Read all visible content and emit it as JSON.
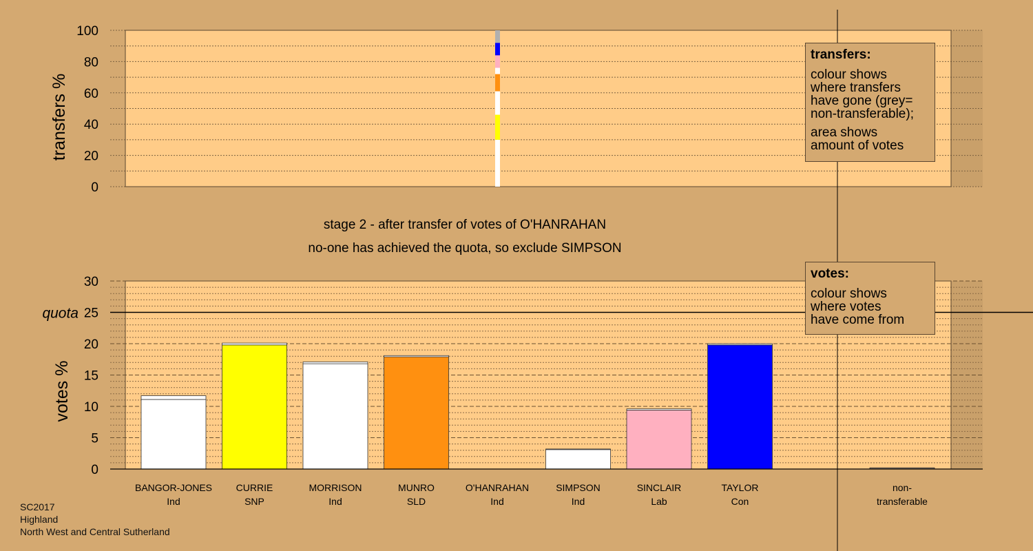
{
  "stage": {
    "title": "stage 2 - after transfer of votes of O'HANRAHAN",
    "subtitle": "no-one has achieved the quota, so exclude SIMPSON"
  },
  "legend_transfers": {
    "title": "transfers:",
    "lines": [
      "colour shows",
      "where transfers",
      "have gone (grey=",
      "non-transferable);"
    ],
    "lines2": [
      "area shows",
      "amount of votes"
    ]
  },
  "legend_votes": {
    "title": "votes:",
    "lines": [
      "colour shows",
      "where votes",
      "have come from"
    ]
  },
  "footer": {
    "election": "SC2017",
    "council": "Highland",
    "ward": "North West and Central Sutherland"
  },
  "colors": {
    "background": "#d4a971",
    "plot_bg": "#ffcc88",
    "Ind": "#ffffff",
    "SNP": "#ffff00",
    "SLD": "#ff9010",
    "Lab": "#ffb0c0",
    "Con": "#0000ff",
    "nontransferable": "#b0b0b0"
  },
  "chart_data": [
    {
      "type": "bar",
      "name": "transfers",
      "ylabel": "transfers %",
      "ylim": [
        0,
        100
      ],
      "yticks": [
        0,
        20,
        40,
        60,
        80,
        100
      ],
      "grid": true,
      "segments": [
        {
          "to": "BANGOR-JONES",
          "party": "Ind",
          "value": 30
        },
        {
          "to": "CURRIE",
          "party": "SNP",
          "value": 16
        },
        {
          "to": "MORRISON",
          "party": "Ind",
          "value": 15
        },
        {
          "to": "MUNRO",
          "party": "SLD",
          "value": 11
        },
        {
          "to": "SIMPSON",
          "party": "Ind",
          "value": 4
        },
        {
          "to": "SINCLAIR",
          "party": "Lab",
          "value": 8
        },
        {
          "to": "TAYLOR",
          "party": "Con",
          "value": 8
        },
        {
          "to": "non-transferable",
          "party": "nontransferable",
          "value": 8
        }
      ]
    },
    {
      "type": "bar",
      "name": "votes",
      "ylabel": "votes %",
      "ylim": [
        0,
        30
      ],
      "yticks": [
        0,
        5,
        10,
        15,
        20,
        25,
        30
      ],
      "quota": 25,
      "quota_label": "quota",
      "grid": true,
      "categories": [
        {
          "name": "BANGOR-JONES",
          "party": "Ind",
          "value": 11.1,
          "transferred": 0.6
        },
        {
          "name": "CURRIE",
          "party": "SNP",
          "value": 19.8,
          "transferred": 0.3
        },
        {
          "name": "MORRISON",
          "party": "Ind",
          "value": 16.8,
          "transferred": 0.3
        },
        {
          "name": "MUNRO",
          "party": "SLD",
          "value": 17.9,
          "transferred": 0.2
        },
        {
          "name": "O'HANRAHAN",
          "party": "Ind",
          "value": 0,
          "transferred": 0
        },
        {
          "name": "SIMPSON",
          "party": "Ind",
          "value": 3.1,
          "transferred": 0.1
        },
        {
          "name": "SINCLAIR",
          "party": "Lab",
          "value": 9.4,
          "transferred": 0.2
        },
        {
          "name": "TAYLOR",
          "party": "Con",
          "value": 19.8,
          "transferred": 0.2
        }
      ],
      "nontransferable": {
        "name": "non-",
        "name2": "transferable",
        "value": 0.2
      }
    }
  ]
}
